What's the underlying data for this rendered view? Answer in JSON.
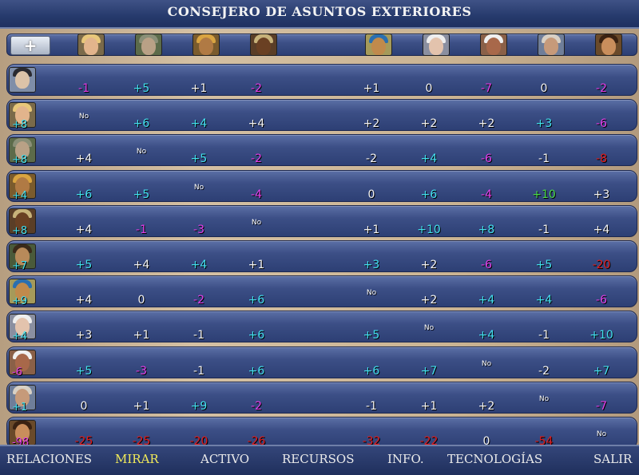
{
  "window": {
    "title": "CONSEJERO DE ASUNTOS EXTERIORES"
  },
  "header": {
    "add_button_label": "+"
  },
  "leaders": [
    {
      "name": "mujer-rubia",
      "skin": "#e2b48c",
      "hair": "#e8c77a",
      "bg": "#7a6a4a"
    },
    {
      "name": "guerrero-plumas",
      "skin": "#b9a186",
      "hair": "#8a8f77",
      "bg": "#5c6b4a"
    },
    {
      "name": "faraon",
      "skin": "#b07a44",
      "hair": "#d9a441",
      "bg": "#7a5b2d"
    },
    {
      "name": "jefe-africano",
      "skin": "#6a4023",
      "hair": "#c7b27a",
      "bg": "#5a3e27"
    },
    {
      "name": "reina-egipcia",
      "skin": "#c08a4c",
      "hair": "#2a6fb0",
      "bg": "#a59a5a"
    },
    {
      "name": "anciano-calvo",
      "skin": "#e3c3ad",
      "hair": "#eeeeee",
      "bg": "#8a8fa0"
    },
    {
      "name": "jefe-nativo",
      "skin": "#a8684a",
      "hair": "#f0f0f0",
      "bg": "#8a6048"
    },
    {
      "name": "gandhi",
      "skin": "#c69a7a",
      "hair": "#d8d0c4",
      "bg": "#6f7e99"
    },
    {
      "name": "conquistador",
      "skin": "#c98e5c",
      "hair": "#3a2212",
      "bg": "#6a4a2a"
    }
  ],
  "rows": [
    {
      "leader": "napoleon",
      "skin": "#dcc3a8",
      "hair": "#2a2a30",
      "bg": "#7f8ea8",
      "score": "",
      "cells": [
        [
          "-1",
          "magenta"
        ],
        [
          "+5",
          "cyan"
        ],
        [
          "+1",
          "white"
        ],
        [
          "-2",
          "magenta"
        ],
        [
          "+1",
          "white"
        ],
        [
          "0",
          "white"
        ],
        [
          "-7",
          "magenta"
        ],
        [
          "0",
          "white"
        ],
        [
          "-2",
          "magenta"
        ]
      ]
    },
    {
      "leader": "mujer-rubia",
      "skin": "#e2b48c",
      "hair": "#e8c77a",
      "bg": "#7a6a4a",
      "score": "+8",
      "cells": [
        [
          "No",
          "no"
        ],
        [
          "+6",
          "cyan"
        ],
        [
          "+4",
          "cyan"
        ],
        [
          "+4",
          "white"
        ],
        [
          "+2",
          "white"
        ],
        [
          "+2",
          "white"
        ],
        [
          "+2",
          "white"
        ],
        [
          "+3",
          "cyan"
        ],
        [
          "-6",
          "magenta"
        ]
      ]
    },
    {
      "leader": "guerrero-plumas",
      "skin": "#b9a186",
      "hair": "#8a8f77",
      "bg": "#5c6b4a",
      "score": "+8",
      "cells": [
        [
          "+4",
          "white"
        ],
        [
          "No",
          "no"
        ],
        [
          "+5",
          "cyan"
        ],
        [
          "-2",
          "magenta"
        ],
        [
          "-2",
          "white"
        ],
        [
          "+4",
          "cyan"
        ],
        [
          "-6",
          "magenta"
        ],
        [
          "-1",
          "white"
        ],
        [
          "-8",
          "red"
        ]
      ]
    },
    {
      "leader": "faraon",
      "skin": "#b07a44",
      "hair": "#d9a441",
      "bg": "#7a5b2d",
      "score": "+4",
      "cells": [
        [
          "+6",
          "cyan"
        ],
        [
          "+5",
          "cyan"
        ],
        [
          "No",
          "no"
        ],
        [
          "-4",
          "magenta"
        ],
        [
          "0",
          "white"
        ],
        [
          "+6",
          "cyan"
        ],
        [
          "-4",
          "magenta"
        ],
        [
          "+10",
          "green"
        ],
        [
          "+3",
          "white"
        ]
      ]
    },
    {
      "leader": "jefe-africano",
      "skin": "#6a4023",
      "hair": "#c7b27a",
      "bg": "#5a3e27",
      "score": "+8",
      "cells": [
        [
          "+4",
          "white"
        ],
        [
          "-1",
          "magenta"
        ],
        [
          "-3",
          "magenta"
        ],
        [
          "No",
          "no"
        ],
        [
          "+1",
          "white"
        ],
        [
          "+10",
          "cyan"
        ],
        [
          "+8",
          "cyan"
        ],
        [
          "-1",
          "white"
        ],
        [
          "+4",
          "white"
        ]
      ]
    },
    {
      "leader": "guerrero-barbudo",
      "skin": "#b88a5a",
      "hair": "#3a2a1a",
      "bg": "#4a5a3a",
      "score": "+7",
      "cells": [
        [
          "+5",
          "cyan"
        ],
        [
          "+4",
          "white"
        ],
        [
          "+4",
          "cyan"
        ],
        [
          "+1",
          "white"
        ],
        [
          "+3",
          "cyan"
        ],
        [
          "+2",
          "white"
        ],
        [
          "-6",
          "magenta"
        ],
        [
          "+5",
          "cyan"
        ],
        [
          "-20",
          "red"
        ]
      ]
    },
    {
      "leader": "reina-egipcia",
      "skin": "#c08a4c",
      "hair": "#2a6fb0",
      "bg": "#a59a5a",
      "score": "+9",
      "cells": [
        [
          "+4",
          "white"
        ],
        [
          "0",
          "white"
        ],
        [
          "-2",
          "magenta"
        ],
        [
          "+6",
          "cyan"
        ],
        [
          "No",
          "no"
        ],
        [
          "+2",
          "white"
        ],
        [
          "+4",
          "cyan"
        ],
        [
          "+4",
          "cyan"
        ],
        [
          "-6",
          "magenta"
        ]
      ]
    },
    {
      "leader": "anciano-calvo",
      "skin": "#e3c3ad",
      "hair": "#eeeeee",
      "bg": "#8a8fa0",
      "score": "+4",
      "cells": [
        [
          "+3",
          "white"
        ],
        [
          "+1",
          "white"
        ],
        [
          "-1",
          "white"
        ],
        [
          "+6",
          "cyan"
        ],
        [
          "+5",
          "cyan"
        ],
        [
          "No",
          "no"
        ],
        [
          "+4",
          "cyan"
        ],
        [
          "-1",
          "white"
        ],
        [
          "+10",
          "cyan"
        ]
      ]
    },
    {
      "leader": "jefe-nativo",
      "skin": "#a8684a",
      "hair": "#f0f0f0",
      "bg": "#8a6048",
      "score": "-6",
      "cells": [
        [
          "+5",
          "cyan"
        ],
        [
          "-3",
          "magenta"
        ],
        [
          "-1",
          "white"
        ],
        [
          "+6",
          "cyan"
        ],
        [
          "+6",
          "cyan"
        ],
        [
          "+7",
          "cyan"
        ],
        [
          "No",
          "no"
        ],
        [
          "-2",
          "white"
        ],
        [
          "+7",
          "cyan"
        ]
      ]
    },
    {
      "leader": "gandhi",
      "skin": "#c69a7a",
      "hair": "#d8d0c4",
      "bg": "#6f7e99",
      "score": "+1",
      "cells": [
        [
          "0",
          "white"
        ],
        [
          "+1",
          "white"
        ],
        [
          "+9",
          "cyan"
        ],
        [
          "-2",
          "magenta"
        ],
        [
          "-1",
          "white"
        ],
        [
          "+1",
          "white"
        ],
        [
          "+2",
          "white"
        ],
        [
          "No",
          "no"
        ],
        [
          "-7",
          "magenta"
        ]
      ]
    },
    {
      "leader": "conquistador",
      "skin": "#c98e5c",
      "hair": "#3a2212",
      "bg": "#6a4a2a",
      "score": "-98",
      "cells": [
        [
          "-25",
          "red"
        ],
        [
          "-25",
          "red"
        ],
        [
          "-20",
          "red"
        ],
        [
          "-26",
          "red"
        ],
        [
          "-32",
          "red"
        ],
        [
          "-22",
          "red"
        ],
        [
          "0",
          "white"
        ],
        [
          "-54",
          "red"
        ],
        [
          "No",
          "no"
        ]
      ]
    }
  ],
  "nav": [
    {
      "id": "relaciones",
      "label": "RELACIONES",
      "active": false
    },
    {
      "id": "mirar",
      "label": "MIRAR",
      "active": true
    },
    {
      "id": "activo",
      "label": "ACTIVO",
      "active": false
    },
    {
      "id": "recursos",
      "label": "RECURSOS",
      "active": false
    },
    {
      "id": "info",
      "label": "INFO.",
      "active": false
    },
    {
      "id": "tecnologias",
      "label": "TECNOLOGÍAS",
      "active": false
    },
    {
      "id": "salir",
      "label": "SALIR",
      "active": false
    }
  ]
}
